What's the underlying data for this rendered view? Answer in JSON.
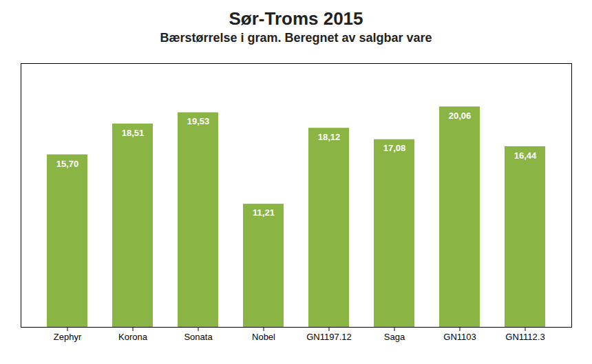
{
  "chart_data": {
    "type": "bar",
    "title": "Sør-Troms 2015",
    "subtitle": "Bærstørrelse i gram. Beregnet av salgbar vare",
    "categories": [
      "Zephyr",
      "Korona",
      "Sonata",
      "Nobel",
      "GN1197.12",
      "Saga",
      "GN1103",
      "GN1112.3"
    ],
    "values": [
      15.7,
      18.51,
      19.53,
      11.21,
      18.12,
      17.08,
      20.06,
      16.44
    ],
    "value_labels": [
      "15,70",
      "18,51",
      "19,53",
      "11,21",
      "18,12",
      "17,08",
      "20,06",
      "16,44"
    ],
    "data_labels": true,
    "color": "#8ab545",
    "ylim": [
      0,
      24
    ],
    "tick_labels": "x",
    "grid": false
  }
}
